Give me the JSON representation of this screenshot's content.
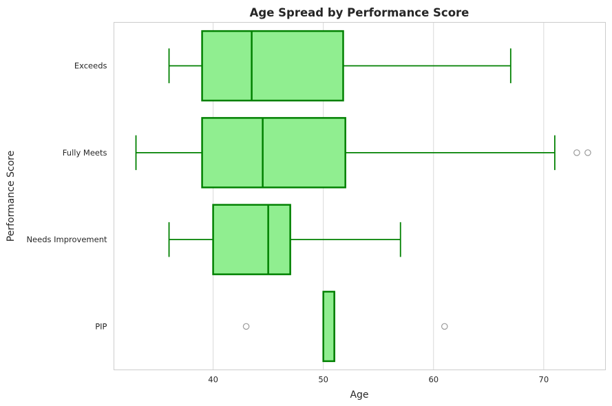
{
  "chart_data": {
    "type": "boxplot",
    "orientation": "horizontal",
    "title": "Age Spread by Performance Score",
    "xlabel": "Age",
    "ylabel": "Performance Score",
    "xlim": [
      31,
      75.6
    ],
    "xticks": [
      "40",
      "50",
      "60",
      "70"
    ],
    "grid": "vertical",
    "colors": {
      "box_fill": "#90ee90",
      "box_edge": "#008000",
      "outlier": "#999999",
      "grid": "#d9d9d9",
      "frame": "#cccccc"
    },
    "categories": [
      "Exceeds",
      "Fully Meets",
      "Needs Improvement",
      "PIP"
    ],
    "boxes": [
      {
        "category": "Exceeds",
        "whisker_low": 36,
        "q1": 39,
        "median": 43.5,
        "q3": 51.8,
        "whisker_high": 67,
        "outliers": []
      },
      {
        "category": "Fully Meets",
        "whisker_low": 33,
        "q1": 39,
        "median": 44.5,
        "q3": 52,
        "whisker_high": 71,
        "outliers": [
          73,
          74
        ]
      },
      {
        "category": "Needs Improvement",
        "whisker_low": 36,
        "q1": 40,
        "median": 45,
        "q3": 47,
        "whisker_high": 57,
        "outliers": []
      },
      {
        "category": "PIP",
        "whisker_low": 50,
        "q1": 50,
        "median": 51,
        "q3": 51,
        "whisker_high": 51,
        "outliers": [
          43,
          61
        ]
      }
    ]
  }
}
